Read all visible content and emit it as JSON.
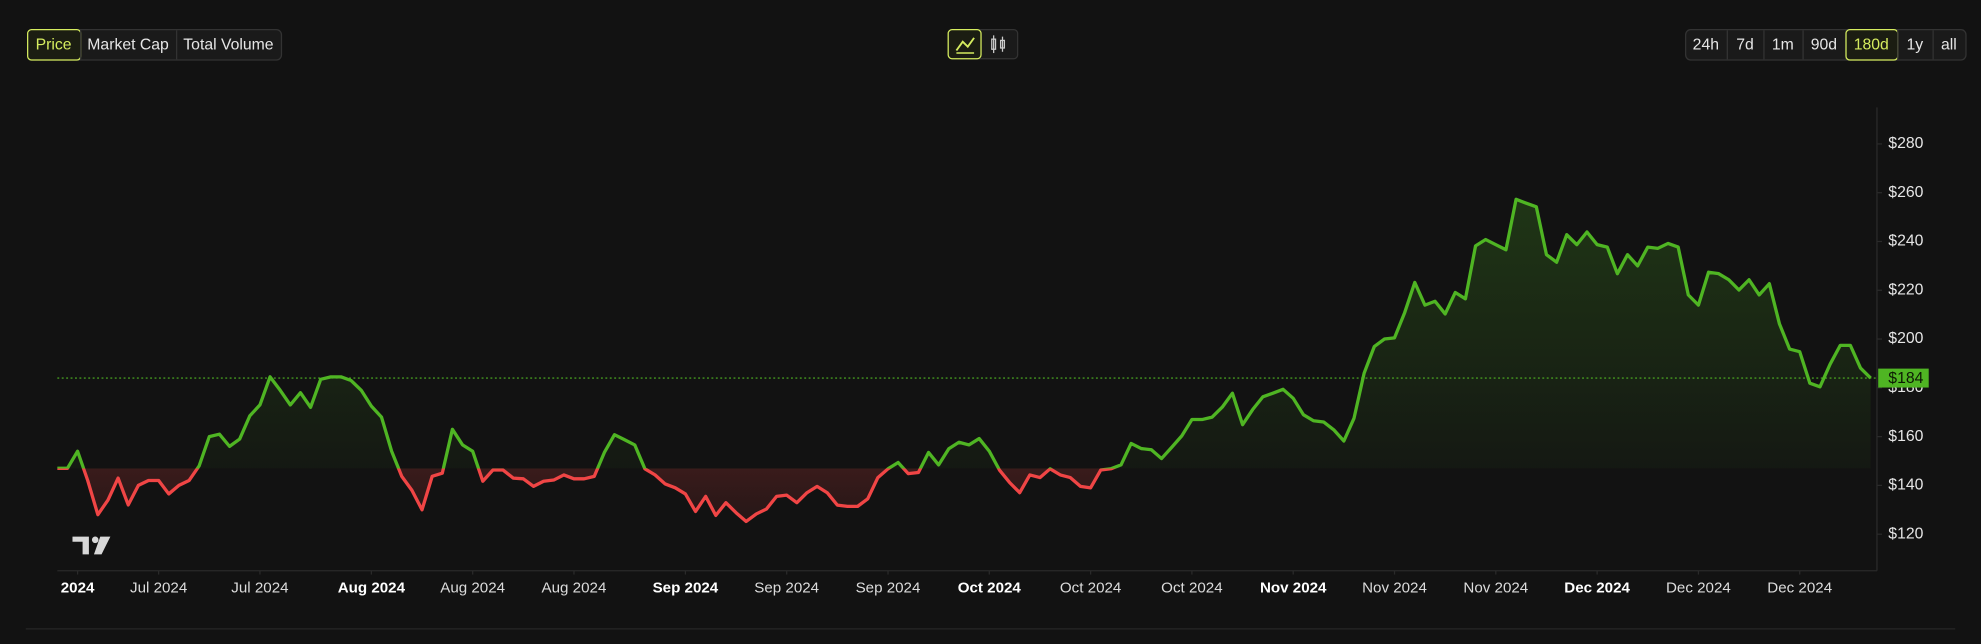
{
  "controls": {
    "metrics": [
      "Price",
      "Market Cap",
      "Total Volume"
    ],
    "active_metric": 0,
    "ranges": [
      "24h",
      "7d",
      "1m",
      "90d",
      "180d",
      "1y",
      "all"
    ],
    "active_range": 4
  },
  "chart_data": {
    "type": "line",
    "color": "#4fb523",
    "down_color": "#f04545",
    "values": [
      147,
      147,
      154,
      142,
      128,
      134,
      143,
      132,
      140,
      142,
      142,
      136.5,
      140,
      142,
      148,
      160,
      161,
      156,
      159,
      168.5,
      173,
      184.5,
      179,
      173,
      178,
      172,
      183.5,
      184.5,
      184.5,
      183,
      179,
      172.5,
      168,
      154,
      143.7,
      138,
      130,
      143.7,
      145,
      163,
      156.6,
      154,
      141.7,
      146.3,
      146.3,
      143,
      142.7,
      139.6,
      141.7,
      142.2,
      144.3,
      142.7,
      142.7,
      143.7,
      153.5,
      160.8,
      158.7,
      156.6,
      146.8,
      144.3,
      140.6,
      139,
      136.5,
      129.3,
      135.5,
      127.7,
      132.9,
      128.8,
      125.2,
      128.3,
      130.3,
      135.5,
      136,
      132.9,
      137,
      139.6,
      137,
      131.9,
      131.4,
      131.4,
      134.5,
      143.2,
      146.8,
      149.4,
      144.8,
      145.3,
      153.5,
      148.4,
      155,
      157.7,
      156.6,
      159.2,
      154,
      146.3,
      141.2,
      137,
      144.3,
      143.2,
      146.8,
      144.3,
      143.2,
      139.6,
      139,
      146.3,
      146.8,
      148.4,
      157.2,
      155.1,
      154.6,
      151,
      155.6,
      160.3,
      167,
      167,
      168,
      172.1,
      177.8,
      164.9,
      171.1,
      176.3,
      177.8,
      179.4,
      175.7,
      169,
      166.5,
      166,
      162.8,
      158.2,
      167.5,
      186,
      196.9,
      200,
      200.5,
      210.8,
      223.2,
      213.9,
      215.5,
      210.3,
      219.1,
      216.5,
      238.2,
      240.8,
      238.7,
      236.6,
      257.3,
      255.7,
      254.2,
      234.6,
      231.5,
      242.8,
      238.7,
      243.9,
      238.7,
      237.7,
      226.8,
      234.6,
      230,
      237.7,
      237.2,
      239.2,
      237.7,
      218.1,
      213.9,
      227.4,
      226.8,
      224.3,
      220.1,
      224.3,
      218.1,
      222.7,
      206.2,
      195.9,
      194.8,
      181.9,
      180.4,
      189.7,
      197.4,
      197.4,
      188.1,
      184
    ],
    "xlim": [
      0,
      179
    ],
    "xticks": [
      {
        "value": 2,
        "label": "2024",
        "bold": true
      },
      {
        "value": 10,
        "label": "Jul 2024"
      },
      {
        "value": 20,
        "label": "Jul 2024"
      },
      {
        "value": 31,
        "label": "Aug 2024",
        "bold": true
      },
      {
        "value": 41,
        "label": "Aug 2024"
      },
      {
        "value": 51,
        "label": "Aug 2024"
      },
      {
        "value": 62,
        "label": "Sep 2024",
        "bold": true
      },
      {
        "value": 72,
        "label": "Sep 2024"
      },
      {
        "value": 82,
        "label": "Sep 2024"
      },
      {
        "value": 92,
        "label": "Oct 2024",
        "bold": true
      },
      {
        "value": 102,
        "label": "Oct 2024"
      },
      {
        "value": 112,
        "label": "Oct 2024"
      },
      {
        "value": 122,
        "label": "Nov 2024",
        "bold": true
      },
      {
        "value": 132,
        "label": "Nov 2024"
      },
      {
        "value": 142,
        "label": "Nov 2024"
      },
      {
        "value": 152,
        "label": "Dec 2024",
        "bold": true
      },
      {
        "value": 162,
        "label": "Dec 2024"
      },
      {
        "value": 172,
        "label": "Dec 2024"
      }
    ],
    "ylim": [
      105,
      295
    ],
    "yticks": [
      {
        "value": 120,
        "label": "$120"
      },
      {
        "value": 140,
        "label": "$140"
      },
      {
        "value": 160,
        "label": "$160"
      },
      {
        "value": 180,
        "label": "$180"
      },
      {
        "value": 200,
        "label": "$200"
      },
      {
        "value": 220,
        "label": "$220"
      },
      {
        "value": 240,
        "label": "$240"
      },
      {
        "value": 260,
        "label": "$260"
      },
      {
        "value": 280,
        "label": "$280"
      }
    ],
    "current_price": {
      "value": 184,
      "label": "$184"
    }
  }
}
